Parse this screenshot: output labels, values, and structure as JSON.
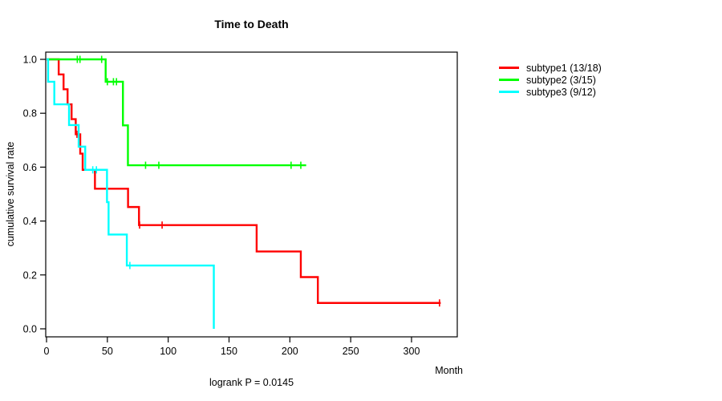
{
  "title": "Time to Death",
  "footer": "logrank P = 0.0145",
  "x_axis": {
    "label": "Month"
  },
  "y_axis": {
    "label": "cumulative survival rate"
  },
  "legend": {
    "position": "right",
    "items": [
      {
        "label": "subtype1 (13/18)",
        "color": "#FF0000"
      },
      {
        "label": "subtype2 (3/15)",
        "color": "#00FF00"
      },
      {
        "label": "subtype3 (9/12)",
        "color": "#00FFFF"
      }
    ]
  },
  "chart_data": {
    "type": "line",
    "subtype": "kaplan-meier-step",
    "title": "Time to Death",
    "xlabel": "Month",
    "ylabel": "cumulative survival rate",
    "grid": false,
    "x_axis": {
      "ticks": [
        0,
        50,
        100,
        150,
        200,
        250,
        300
      ],
      "range": [
        0,
        338
      ]
    },
    "y_axis": {
      "ticks": [
        0,
        0.2,
        0.4,
        0.6,
        0.8,
        1.0
      ],
      "tick_labels": [
        "0.0",
        "0.2",
        "0.4",
        "0.6",
        "0.8",
        "1.0"
      ],
      "range": [
        0,
        1
      ]
    },
    "series": [
      {
        "name": "subtype1",
        "legend": "subtype1 (13/18)",
        "color": "#FF0000",
        "steps": [
          [
            0,
            1.0
          ],
          [
            10,
            0.944
          ],
          [
            14,
            0.889
          ],
          [
            17.3,
            0.833
          ],
          [
            20.6,
            0.778
          ],
          [
            24,
            0.722
          ],
          [
            27.7,
            0.65
          ],
          [
            29.7,
            0.59
          ],
          [
            39.8,
            0.52
          ],
          [
            67,
            0.452
          ],
          [
            76,
            0.385
          ],
          [
            172.7,
            0.287
          ],
          [
            209,
            0.192
          ],
          [
            223,
            0.096
          ]
        ],
        "end_month": 324,
        "censor_marks": [
          [
            25,
            0.722
          ],
          [
            76.5,
            0.385
          ],
          [
            95,
            0.385
          ],
          [
            323,
            0.096
          ]
        ]
      },
      {
        "name": "subtype2",
        "legend": "subtype2 (3/15)",
        "color": "#00FF00",
        "steps": [
          [
            0,
            1.0
          ],
          [
            48.6,
            0.917
          ],
          [
            62.8,
            0.755
          ],
          [
            66.9,
            0.607
          ]
        ],
        "end_month": 213.4,
        "censor_marks": [
          [
            25.3,
            1.0
          ],
          [
            27.5,
            1.0
          ],
          [
            45.3,
            1.0
          ],
          [
            50,
            0.917
          ],
          [
            55,
            0.917
          ],
          [
            57.5,
            0.917
          ],
          [
            81.4,
            0.607
          ],
          [
            92.3,
            0.607
          ],
          [
            201,
            0.607
          ],
          [
            209,
            0.607
          ]
        ]
      },
      {
        "name": "subtype3",
        "legend": "subtype3 (9/12)",
        "color": "#00FFFF",
        "steps": [
          [
            0,
            1.0
          ],
          [
            1.3,
            0.917
          ],
          [
            6.4,
            0.833
          ],
          [
            18.5,
            0.756
          ],
          [
            26.4,
            0.676
          ],
          [
            31.8,
            0.59
          ],
          [
            49.7,
            0.47
          ],
          [
            51,
            0.35
          ],
          [
            66,
            0.235
          ],
          [
            137.5,
            0.0
          ]
        ],
        "end_month": 137.5,
        "censor_marks": [
          [
            38,
            0.59
          ],
          [
            41,
            0.59
          ],
          [
            68.5,
            0.235
          ]
        ]
      }
    ]
  }
}
